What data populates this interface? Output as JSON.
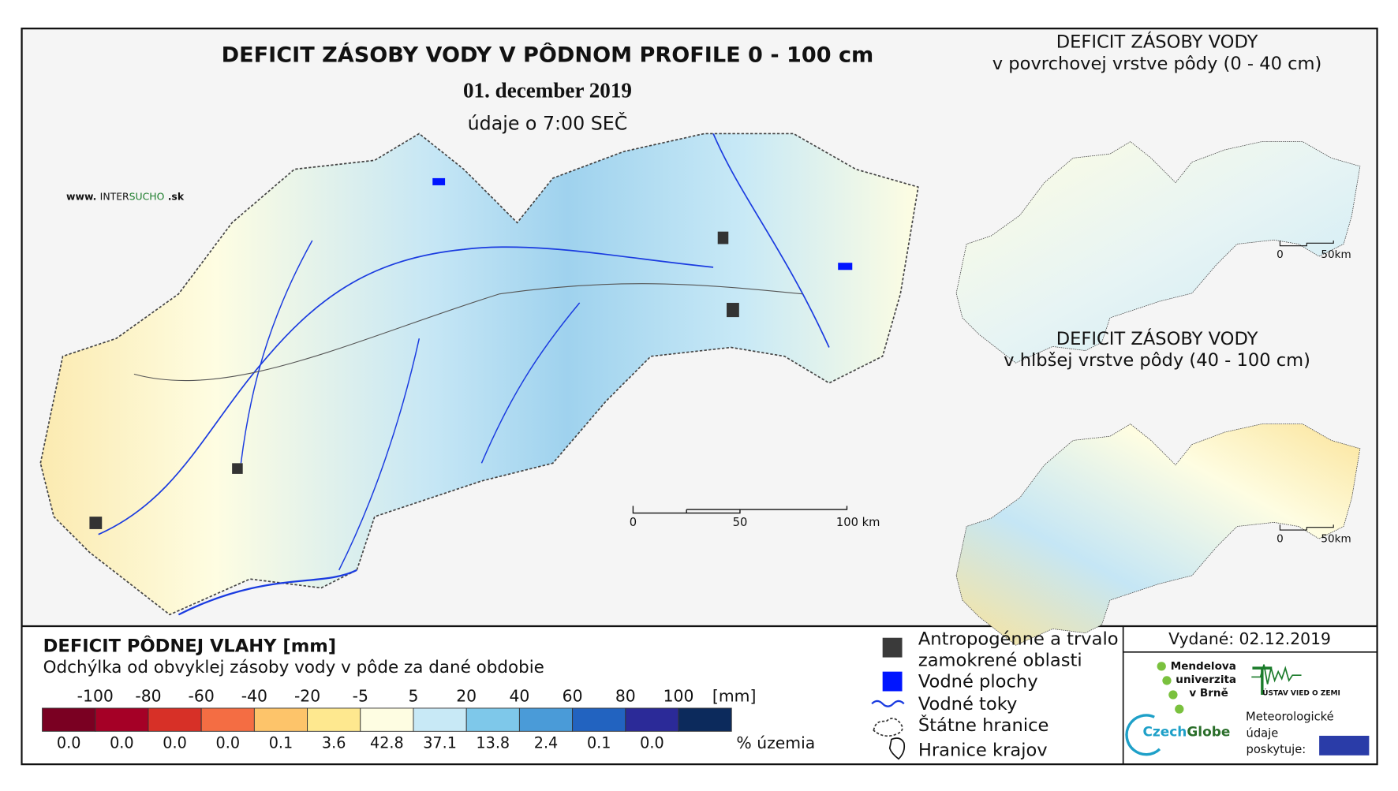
{
  "header": {
    "title": "DEFICIT ZÁSOBY VODY V PÔDNOM PROFILE 0 - 100 cm",
    "date": "01. december 2019",
    "time_note": "údaje o 7:00 SEČ",
    "website": {
      "prefix": "www.",
      "name_a": "INTER",
      "name_b": "SUCHO",
      "suffix": ".sk"
    }
  },
  "main_map": {
    "scale_bar": [
      "0",
      "50",
      "100 km"
    ]
  },
  "inset_maps": [
    {
      "title": "DEFICIT ZÁSOBY VODY",
      "subtitle": "v povrchovej vrstve pôdy (0 - 40 cm)",
      "scale_bar": [
        "0",
        "50km"
      ]
    },
    {
      "title": "DEFICIT ZÁSOBY VODY",
      "subtitle": "v hlbšej vrstve pôdy (40 - 100 cm)",
      "scale_bar": [
        "0",
        "50km"
      ]
    }
  ],
  "legend": {
    "title": "DEFICIT PÔDNEJ VLAHY [mm]",
    "subtitle": "Odchýlka od obvyklej zásoby vody v pôde za dané obdobie",
    "bounds": [
      -100,
      -80,
      -60,
      -40,
      -20,
      -5,
      5,
      20,
      40,
      60,
      80,
      100
    ],
    "unit": "[mm]",
    "colors": [
      "#7a0022",
      "#a50026",
      "#d73027",
      "#f46d43",
      "#fdc46a",
      "#fee88f",
      "#fefde2",
      "#c8e9f6",
      "#7ec8ea",
      "#4a9bd8",
      "#2263c0",
      "#2b2a98",
      "#0c2a5c"
    ],
    "percent_values": [
      0,
      0,
      0,
      0,
      0.1,
      3.6,
      42.8,
      37.1,
      13.8,
      2.4,
      0.1,
      0
    ],
    "percent_labels": [
      "0.0",
      "0.0",
      "0.0",
      "0.0",
      "0.1",
      "3.6",
      "42.8",
      "37.1",
      "13.8",
      "2.4",
      "0.1",
      "0.0"
    ],
    "percent_unit": "% územia"
  },
  "map_legend": {
    "anthropogenic": [
      "Antropogénne a trvalo",
      "zamokrené oblasti"
    ],
    "water_bodies": "Vodné plochy",
    "rivers": "Vodné toky",
    "state_border": "Štátne hranice",
    "region_border": "Hranice krajov"
  },
  "issued": "Vydané: 02.12.2019",
  "logos": {
    "mendel": [
      "Mendelova",
      "univerzita",
      "v Brně"
    ],
    "earth_institute": "ÚSTAV VIED O ZEMI",
    "czechglobe_a": "Czech",
    "czechglobe_b": "Globe",
    "meteo": [
      "Meteorologické",
      "údaje",
      "poskytuje:"
    ]
  }
}
